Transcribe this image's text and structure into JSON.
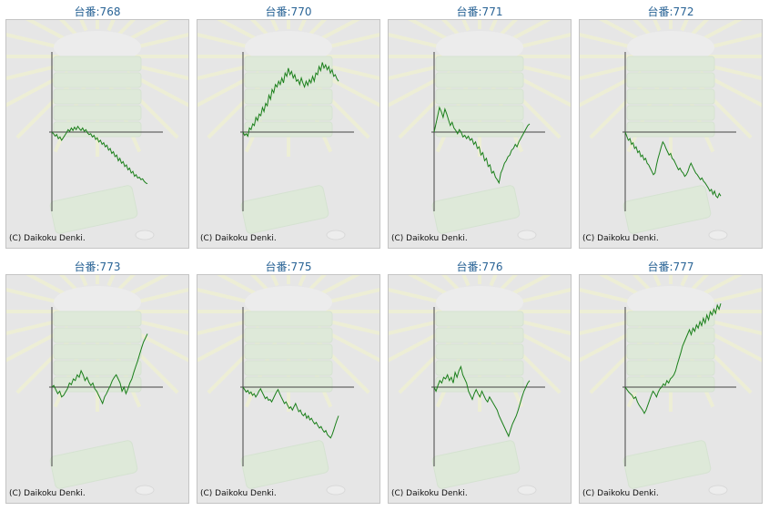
{
  "copyright": "(C) Daikoku Denki.",
  "colors": {
    "title": "#2a6496",
    "line": "#1a7f1a",
    "axis": "#444444",
    "panel": "#e6e6e6"
  },
  "chart_data": [
    {
      "type": "line",
      "title": "台番:768",
      "values": [
        0,
        -2,
        -5,
        -3,
        -8,
        -6,
        -10,
        -7,
        -4,
        -1,
        3,
        1,
        5,
        2,
        6,
        3,
        7,
        4,
        2,
        5,
        1,
        3,
        -1,
        -3,
        -2,
        -6,
        -4,
        -9,
        -7,
        -12,
        -10,
        -15,
        -13,
        -18,
        -16,
        -22,
        -20,
        -26,
        -24,
        -30,
        -28,
        -35,
        -32,
        -38,
        -36,
        -42,
        -40,
        -46,
        -44,
        -50,
        -48,
        -54,
        -52,
        -56,
        -55,
        -58,
        -57,
        -60,
        -62,
        -63
      ]
    },
    {
      "type": "line",
      "title": "台番:770",
      "values": [
        0,
        -4,
        -2,
        -5,
        5,
        3,
        10,
        8,
        18,
        14,
        22,
        20,
        30,
        25,
        35,
        32,
        45,
        40,
        52,
        48,
        58,
        55,
        62,
        58,
        66,
        60,
        72,
        68,
        78,
        70,
        74,
        66,
        70,
        62,
        64,
        58,
        66,
        60,
        55,
        62,
        57,
        64,
        60,
        68,
        62,
        72,
        70,
        80,
        75,
        85,
        78,
        82,
        76,
        80,
        72,
        76,
        68,
        70,
        65,
        62
      ]
    },
    {
      "type": "line",
      "title": "台番:771",
      "values": [
        0,
        10,
        20,
        30,
        25,
        18,
        28,
        22,
        15,
        8,
        12,
        5,
        2,
        -2,
        3,
        0,
        -6,
        -4,
        -8,
        -5,
        -10,
        -8,
        -15,
        -12,
        -20,
        -18,
        -28,
        -25,
        -35,
        -32,
        -42,
        -40,
        -50,
        -48,
        -55,
        -58,
        -62,
        -50,
        -45,
        -38,
        -35,
        -30,
        -28,
        -22,
        -20,
        -15,
        -18,
        -12,
        -8,
        -4,
        0,
        4,
        8,
        10
      ]
    },
    {
      "type": "line",
      "title": "台番:772",
      "values": [
        0,
        -5,
        -10,
        -8,
        -15,
        -13,
        -20,
        -18,
        -25,
        -23,
        -30,
        -28,
        -34,
        -32,
        -38,
        -40,
        -44,
        -48,
        -52,
        -50,
        -40,
        -32,
        -25,
        -18,
        -12,
        -15,
        -20,
        -24,
        -28,
        -26,
        -32,
        -34,
        -38,
        -42,
        -46,
        -44,
        -48,
        -50,
        -54,
        -52,
        -48,
        -42,
        -38,
        -42,
        -46,
        -50,
        -52,
        -55,
        -58,
        -56,
        -60,
        -62,
        -65,
        -68,
        -72,
        -70,
        -76,
        -72,
        -78,
        -80,
        -75,
        -78
      ]
    },
    {
      "type": "line",
      "title": "台番:773",
      "values": [
        0,
        2,
        -3,
        -8,
        -5,
        -12,
        -10,
        -6,
        -2,
        5,
        3,
        10,
        8,
        15,
        12,
        20,
        15,
        8,
        12,
        6,
        2,
        5,
        -2,
        -5,
        -10,
        -15,
        -20,
        -12,
        -8,
        -3,
        2,
        8,
        12,
        15,
        10,
        5,
        -5,
        0,
        -8,
        -2,
        5,
        10,
        18,
        25,
        32,
        40,
        48,
        55,
        60,
        65
      ]
    },
    {
      "type": "line",
      "title": "台番:775",
      "values": [
        0,
        -3,
        -6,
        -4,
        -8,
        -6,
        -10,
        -8,
        -12,
        -9,
        -5,
        -2,
        -6,
        -10,
        -14,
        -12,
        -16,
        -15,
        -18,
        -14,
        -10,
        -6,
        -3,
        -8,
        -12,
        -16,
        -20,
        -18,
        -22,
        -26,
        -24,
        -28,
        -24,
        -20,
        -25,
        -30,
        -28,
        -33,
        -35,
        -32,
        -38,
        -35,
        -40,
        -38,
        -42,
        -45,
        -43,
        -47,
        -50,
        -48,
        -52,
        -55,
        -53,
        -58,
        -60,
        -62,
        -58,
        -52,
        -46,
        -40,
        -35
      ]
    },
    {
      "type": "line",
      "title": "台番:776",
      "values": [
        0,
        -5,
        2,
        8,
        5,
        12,
        10,
        15,
        8,
        12,
        5,
        18,
        12,
        20,
        25,
        15,
        10,
        5,
        -5,
        -10,
        -15,
        -8,
        -3,
        -8,
        -12,
        -5,
        -10,
        -15,
        -18,
        -12,
        -16,
        -20,
        -24,
        -28,
        -35,
        -40,
        -45,
        -50,
        -55,
        -60,
        -52,
        -45,
        -40,
        -35,
        -28,
        -20,
        -12,
        -5,
        0,
        5,
        8
      ]
    },
    {
      "type": "line",
      "title": "台番:777",
      "values": [
        0,
        -3,
        -6,
        -8,
        -10,
        -14,
        -12,
        -18,
        -22,
        -25,
        -28,
        -32,
        -28,
        -22,
        -16,
        -10,
        -5,
        -8,
        -12,
        -6,
        -2,
        0,
        4,
        2,
        8,
        5,
        10,
        12,
        15,
        20,
        28,
        35,
        42,
        50,
        55,
        60,
        65,
        70,
        64,
        72,
        68,
        76,
        72,
        80,
        75,
        84,
        78,
        88,
        82,
        92,
        88,
        95,
        90,
        100,
        95,
        102
      ]
    }
  ]
}
